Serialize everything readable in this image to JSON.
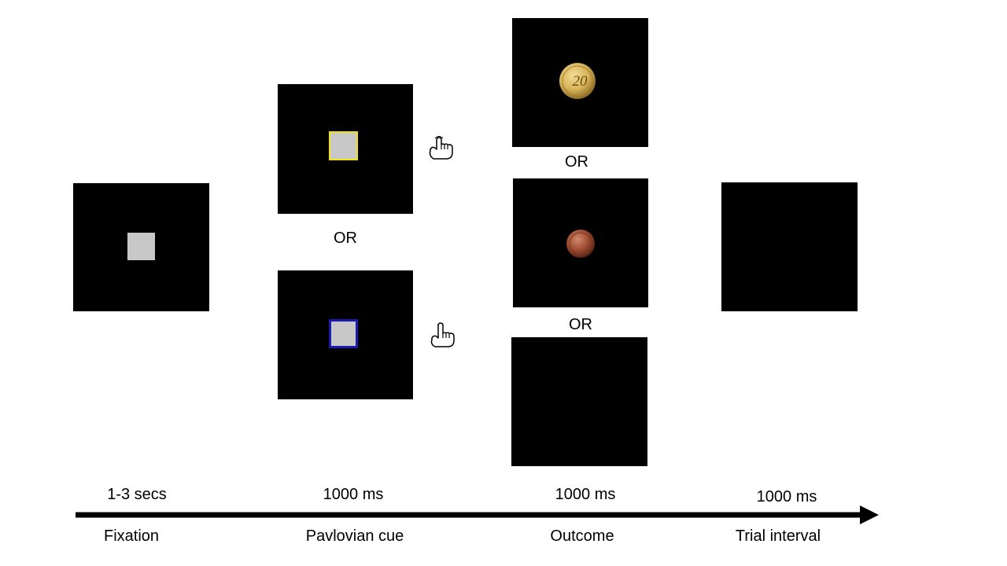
{
  "colors": {
    "screen": "#000000",
    "stimulus_gray": "#c8c8c8",
    "go_frame": "#f2e21a",
    "nogo_frame": "#1b1bb0",
    "gold_coin": "#d7b45a",
    "copper_coin": "#9c4a30"
  },
  "phases": {
    "fixation": {
      "label": "Fixation",
      "duration": "1-3 secs"
    },
    "cue": {
      "label": "Pavlovian cue",
      "duration": "1000 ms"
    },
    "outcome": {
      "label": "Outcome",
      "duration": "1000 ms"
    },
    "interval": {
      "label": "Trial interval",
      "duration": "1000 ms"
    }
  },
  "or_text": "OR",
  "coin_gold_text": "20",
  "icons": {
    "go": "hand-press-icon",
    "nogo": "hand-pointing-icon",
    "coin_high": "gold-coin-icon",
    "coin_low": "copper-coin-icon"
  }
}
